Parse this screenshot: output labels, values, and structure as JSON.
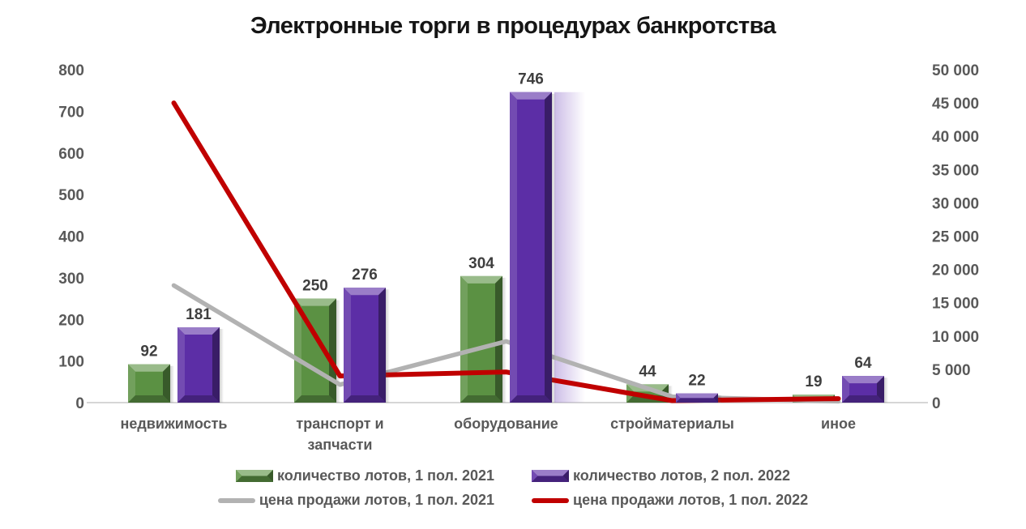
{
  "title": "Электронные торги в процедурах банкротства",
  "chart_data": {
    "type": "combo-bar-line",
    "title": "Электронные торги в процедурах банкротства",
    "categories": [
      "недвижимость",
      "транспорт и\nзапчасти",
      "оборудование",
      "стройматериалы",
      "иное"
    ],
    "bar_series": [
      {
        "name": "количество лотов, 1 пол. 2021",
        "axis": "left",
        "color": "#5b9143",
        "values": [
          92,
          250,
          304,
          44,
          19
        ]
      },
      {
        "name": "количество лотов, 2 пол. 2022",
        "axis": "left",
        "color": "#5c2ea6",
        "values": [
          181,
          276,
          746,
          22,
          64
        ]
      }
    ],
    "line_series": [
      {
        "name": "цена продажи лотов, 1 пол. 2021",
        "axis": "right",
        "color": "#b2b2b2",
        "values": [
          17600,
          2700,
          9200,
          900,
          200
        ]
      },
      {
        "name": "цена продажи лотов, 1 пол. 2022",
        "axis": "right",
        "color": "#c00000",
        "values": [
          45000,
          4000,
          4600,
          300,
          600
        ]
      }
    ],
    "left_axis": {
      "min": 0,
      "max": 800,
      "step": 100,
      "tick_labels": [
        "0",
        "100",
        "200",
        "300",
        "400",
        "500",
        "600",
        "700",
        "800"
      ]
    },
    "right_axis": {
      "min": 0,
      "max": 50000,
      "step": 5000,
      "tick_labels": [
        "0",
        "5 000",
        "10 000",
        "15 000",
        "20 000",
        "25 000",
        "30 000",
        "35 000",
        "40 000",
        "45 000",
        "50 000"
      ]
    },
    "highlight": {
      "series": 1,
      "category": 2,
      "glow_color": "#8f6cc9"
    },
    "legend_position": "bottom",
    "grid": false,
    "axis_line_color": "#d6d6d6",
    "tick_label_color": "#595959",
    "data_label_color": "#3f3f3f"
  }
}
